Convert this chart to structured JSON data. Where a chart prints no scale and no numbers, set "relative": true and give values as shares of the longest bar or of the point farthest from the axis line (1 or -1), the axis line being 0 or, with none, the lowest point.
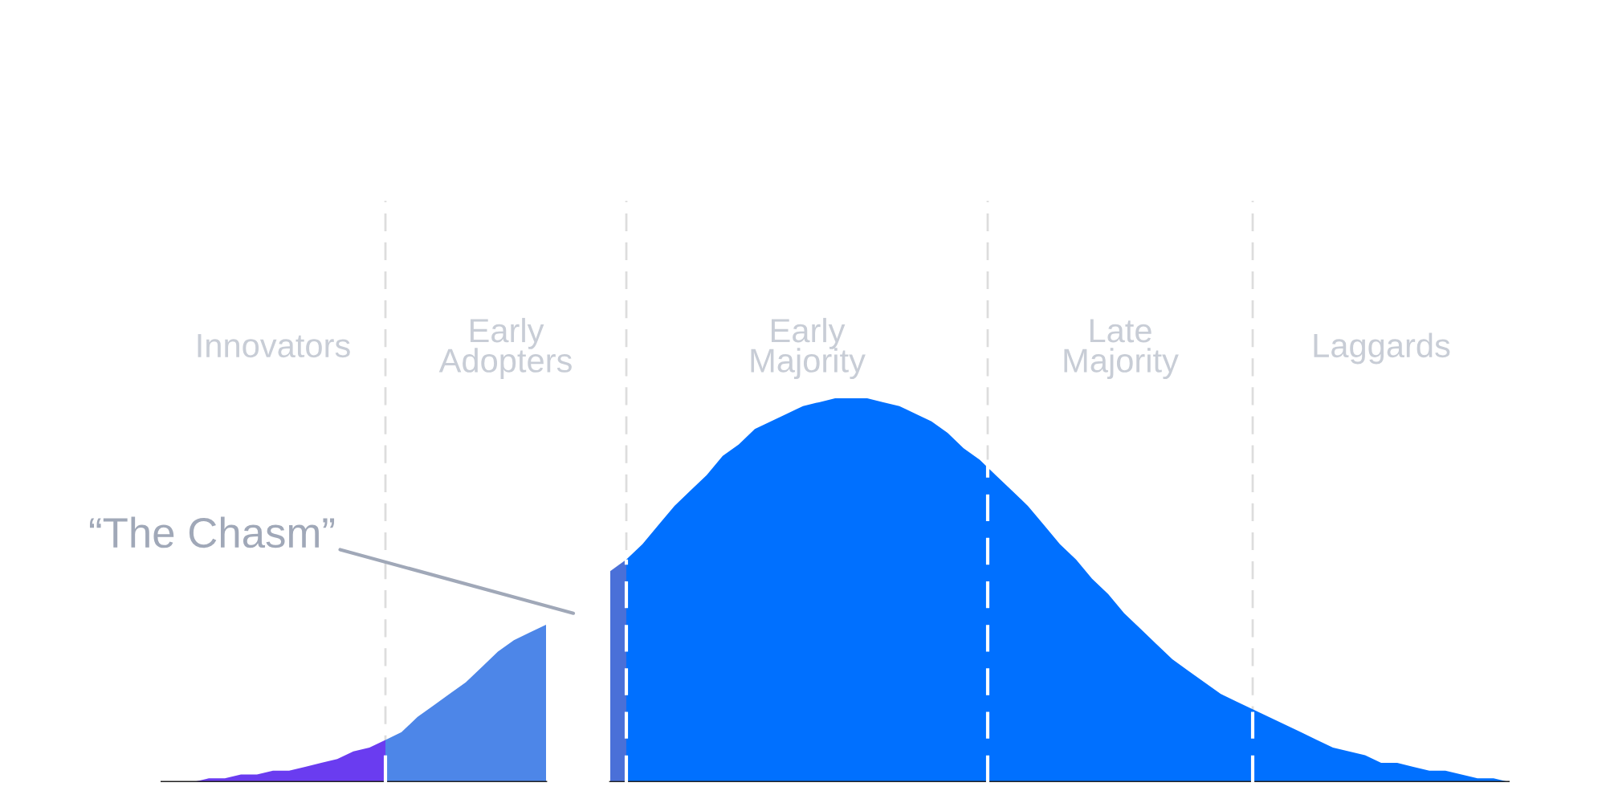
{
  "chart_data": {
    "type": "area",
    "relative": true,
    "categories": [
      null,
      null,
      null,
      null,
      null,
      null,
      null,
      null,
      null,
      null,
      null,
      null,
      null,
      null,
      null,
      null,
      null,
      null,
      null,
      null,
      null,
      null,
      null,
      null,
      null,
      null,
      null,
      null,
      null,
      null,
      null,
      null,
      null,
      null,
      null,
      null,
      null,
      null,
      null,
      null,
      null,
      null,
      null,
      null,
      null,
      null,
      null,
      null,
      null,
      null,
      null,
      null,
      null,
      null,
      null,
      null,
      null,
      null,
      null,
      null,
      null,
      null,
      null,
      null,
      null,
      null,
      null,
      null,
      null,
      null,
      null,
      null,
      null,
      null,
      null,
      null,
      null,
      null,
      null,
      null,
      null,
      null,
      null,
      null,
      null
    ],
    "series": [
      {
        "color": "#6a3cf0",
        "values": [
          0,
          0,
          0,
          0.01,
          0.01,
          0.02,
          0.02,
          0.03,
          0.03,
          0.04,
          0.05,
          0.06,
          0.08,
          0.09,
          0.11,
          null,
          null,
          null,
          null,
          null,
          null,
          null,
          null,
          null,
          null,
          null,
          null,
          null,
          null,
          null,
          null,
          null,
          null,
          null,
          null,
          null,
          null,
          null,
          null,
          null,
          null,
          null,
          null,
          null,
          null,
          null,
          null,
          null,
          null,
          null,
          null,
          null,
          null,
          null,
          null,
          null,
          null,
          null,
          null,
          null,
          null,
          null,
          null,
          null,
          null,
          null,
          null,
          null,
          null,
          null,
          null,
          null,
          null,
          null,
          null,
          null,
          null,
          null,
          null,
          null,
          null,
          null,
          null,
          null,
          null
        ]
      },
      {
        "color": "#4d86e8",
        "values": [
          null,
          null,
          null,
          null,
          null,
          null,
          null,
          null,
          null,
          null,
          null,
          null,
          null,
          null,
          0.11,
          0.13,
          0.17,
          0.2,
          0.23,
          0.26,
          0.3,
          0.34,
          0.37,
          0.39,
          0.41,
          null,
          null,
          null,
          null,
          null,
          null,
          null,
          null,
          null,
          null,
          null,
          null,
          null,
          null,
          null,
          null,
          null,
          null,
          null,
          null,
          null,
          null,
          null,
          null,
          null,
          null,
          null,
          null,
          null,
          null,
          null,
          null,
          null,
          null,
          null,
          null,
          null,
          null,
          null,
          null,
          null,
          null,
          null,
          null,
          null,
          null,
          null,
          null,
          null,
          null,
          null,
          null,
          null,
          null,
          null,
          null,
          null,
          null,
          null,
          null
        ]
      },
      {
        "color": "#4a70d8",
        "values": [
          null,
          null,
          null,
          null,
          null,
          null,
          null,
          null,
          null,
          null,
          null,
          null,
          null,
          null,
          null,
          null,
          null,
          null,
          null,
          null,
          null,
          null,
          null,
          null,
          null,
          null,
          null,
          null,
          0.55,
          0.58,
          null,
          null,
          null,
          null,
          null,
          null,
          null,
          null,
          null,
          null,
          null,
          null,
          null,
          null,
          null,
          null,
          null,
          null,
          null,
          null,
          null,
          null,
          null,
          null,
          null,
          null,
          null,
          null,
          null,
          null,
          null,
          null,
          null,
          null,
          null,
          null,
          null,
          null,
          null,
          null,
          null,
          null,
          null,
          null,
          null,
          null,
          null,
          null,
          null,
          null,
          null,
          null,
          null,
          null,
          null
        ]
      },
      {
        "color": "#0070ff",
        "values": [
          null,
          null,
          null,
          null,
          null,
          null,
          null,
          null,
          null,
          null,
          null,
          null,
          null,
          null,
          null,
          null,
          null,
          null,
          null,
          null,
          null,
          null,
          null,
          null,
          null,
          null,
          null,
          null,
          null,
          0.58,
          0.62,
          0.67,
          0.72,
          0.76,
          0.8,
          0.85,
          0.88,
          0.92,
          0.94,
          0.96,
          0.98,
          0.99,
          1.0,
          1.0,
          1.0,
          0.99,
          0.98,
          0.96,
          0.94,
          0.91,
          0.87,
          0.84,
          0.8,
          0.76,
          0.72,
          0.67,
          0.62,
          0.58,
          0.53,
          0.49,
          0.44,
          0.4,
          0.36,
          0.32,
          0.29,
          0.26,
          0.23,
          0.21,
          0.19,
          0.17,
          0.15,
          0.13,
          0.11,
          0.09,
          0.08,
          0.07,
          0.05,
          0.05,
          0.04,
          0.03,
          0.03,
          0.02,
          0.01,
          0.01,
          0
        ]
      }
    ],
    "annotations": [
      "Innovators",
      "Early\nAdopters",
      "Early\nMajority",
      "Late\nMajority",
      "Laggards",
      "“The Chasm”"
    ],
    "legend": false,
    "grid": "x"
  }
}
